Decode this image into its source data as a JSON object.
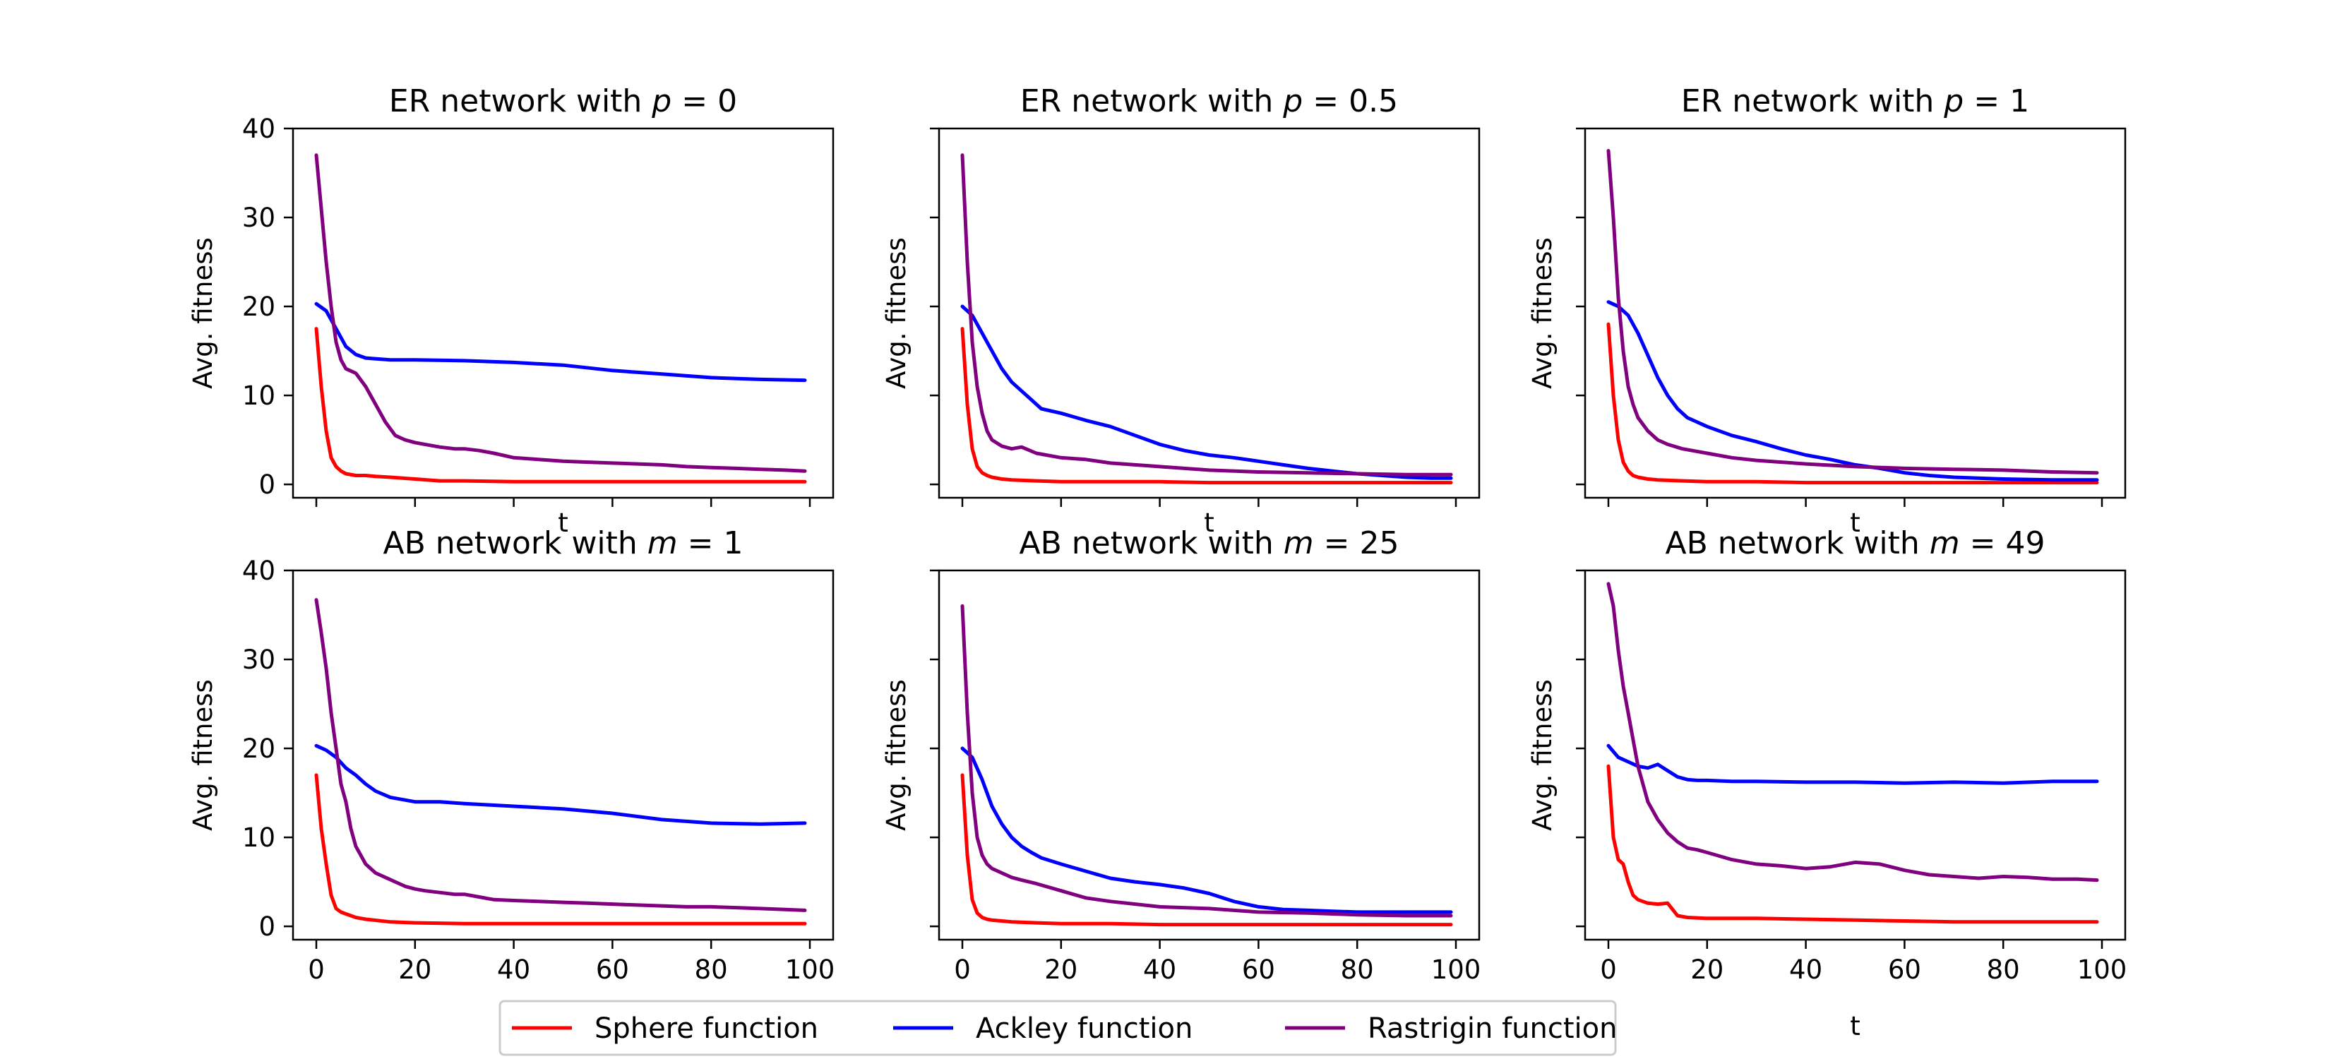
{
  "chart_data": {
    "type": "line",
    "layout": "2x3 grid",
    "legend": {
      "placement": "bottom-center",
      "entries": [
        {
          "label": "Sphere function",
          "color": "#ff0000"
        },
        {
          "label": "Ackley function",
          "color": "#0000ff"
        },
        {
          "label": "Rastrigin function",
          "color": "#800080"
        }
      ]
    },
    "xlim": [
      0,
      100
    ],
    "ylim": [
      -1.5,
      40
    ],
    "xticks": [
      0,
      20,
      40,
      60,
      80,
      100
    ],
    "yticks": [
      0,
      10,
      20,
      30,
      40
    ],
    "panels": [
      {
        "title": "ER network with p = 0",
        "title_prefix": "ER network with ",
        "title_var": "p",
        "title_value": " = 0",
        "xlabel": "t",
        "ylabel": "Avg. fitness",
        "series": [
          {
            "name": "Sphere function",
            "x": [
              0,
              1,
              2,
              3,
              4,
              5,
              6,
              8,
              10,
              12,
              15,
              20,
              25,
              30,
              40,
              50,
              60,
              70,
              80,
              90,
              99
            ],
            "y": [
              17.5,
              11,
              6,
              3,
              2,
              1.5,
              1.2,
              1,
              1,
              0.9,
              0.8,
              0.6,
              0.4,
              0.4,
              0.3,
              0.3,
              0.3,
              0.3,
              0.3,
              0.3,
              0.3
            ]
          },
          {
            "name": "Ackley function",
            "x": [
              0,
              2,
              4,
              6,
              8,
              10,
              15,
              20,
              30,
              40,
              50,
              60,
              70,
              80,
              90,
              99
            ],
            "y": [
              20.3,
              19.5,
              17.5,
              15.5,
              14.6,
              14.2,
              14,
              14,
              13.9,
              13.7,
              13.4,
              12.8,
              12.4,
              12,
              11.8,
              11.7
            ]
          },
          {
            "name": "Rastrigin function",
            "x": [
              0,
              1,
              2,
              3,
              4,
              5,
              6,
              8,
              10,
              12,
              14,
              16,
              18,
              20,
              22,
              25,
              28,
              30,
              33,
              36,
              40,
              45,
              50,
              55,
              60,
              65,
              70,
              75,
              80,
              85,
              90,
              95,
              99
            ],
            "y": [
              37,
              31,
              25,
              20,
              16,
              14,
              13,
              12.5,
              11,
              9,
              7,
              5.5,
              5,
              4.7,
              4.5,
              4.2,
              4,
              4,
              3.8,
              3.5,
              3,
              2.8,
              2.6,
              2.5,
              2.4,
              2.3,
              2.2,
              2,
              1.9,
              1.8,
              1.7,
              1.6,
              1.5
            ]
          }
        ]
      },
      {
        "title": "ER network with p = 0.5",
        "title_prefix": "ER network with ",
        "title_var": "p",
        "title_value": " = 0.5",
        "xlabel": "t",
        "ylabel": "Avg. fitness",
        "series": [
          {
            "name": "Sphere function",
            "x": [
              0,
              1,
              2,
              3,
              4,
              5,
              6,
              8,
              10,
              15,
              20,
              30,
              40,
              50,
              60,
              70,
              80,
              90,
              99
            ],
            "y": [
              17.5,
              9,
              4,
              2,
              1.3,
              1,
              0.8,
              0.6,
              0.5,
              0.4,
              0.3,
              0.3,
              0.3,
              0.2,
              0.2,
              0.2,
              0.2,
              0.2,
              0.2
            ]
          },
          {
            "name": "Ackley function",
            "x": [
              0,
              2,
              4,
              6,
              8,
              10,
              12,
              14,
              16,
              20,
              25,
              30,
              35,
              40,
              45,
              50,
              55,
              60,
              65,
              70,
              75,
              80,
              85,
              90,
              95,
              99
            ],
            "y": [
              20,
              19,
              17,
              15,
              13,
              11.5,
              10.5,
              9.5,
              8.5,
              8,
              7.2,
              6.5,
              5.5,
              4.5,
              3.8,
              3.3,
              3,
              2.6,
              2.2,
              1.8,
              1.5,
              1.2,
              1,
              0.8,
              0.7,
              0.7
            ]
          },
          {
            "name": "Rastrigin function",
            "x": [
              0,
              1,
              2,
              3,
              4,
              5,
              6,
              8,
              10,
              12,
              15,
              20,
              25,
              30,
              40,
              50,
              60,
              70,
              80,
              90,
              99
            ],
            "y": [
              37,
              25,
              16,
              11,
              8,
              6,
              5,
              4.3,
              4,
              4.2,
              3.5,
              3,
              2.8,
              2.4,
              2,
              1.6,
              1.4,
              1.3,
              1.2,
              1.1,
              1.1
            ]
          }
        ]
      },
      {
        "title": "ER network with p = 1",
        "title_prefix": "ER network with ",
        "title_var": "p",
        "title_value": " = 1",
        "xlabel": "t",
        "ylabel": "Avg. fitness",
        "series": [
          {
            "name": "Sphere function",
            "x": [
              0,
              1,
              2,
              3,
              4,
              5,
              6,
              8,
              10,
              15,
              20,
              30,
              40,
              50,
              60,
              70,
              80,
              90,
              99
            ],
            "y": [
              18,
              10,
              5,
              2.5,
              1.5,
              1,
              0.8,
              0.6,
              0.5,
              0.4,
              0.3,
              0.3,
              0.2,
              0.2,
              0.2,
              0.2,
              0.2,
              0.2,
              0.2
            ]
          },
          {
            "name": "Ackley function",
            "x": [
              0,
              2,
              4,
              6,
              8,
              10,
              12,
              14,
              16,
              18,
              20,
              25,
              30,
              35,
              40,
              45,
              50,
              55,
              60,
              65,
              70,
              80,
              90,
              99
            ],
            "y": [
              20.5,
              20,
              19,
              17,
              14.5,
              12,
              10,
              8.5,
              7.5,
              7,
              6.5,
              5.5,
              4.8,
              4,
              3.3,
              2.8,
              2.2,
              1.8,
              1.3,
              1,
              0.8,
              0.6,
              0.5,
              0.5
            ]
          },
          {
            "name": "Rastrigin function",
            "x": [
              0,
              1,
              2,
              3,
              4,
              5,
              6,
              8,
              10,
              12,
              15,
              20,
              25,
              30,
              40,
              50,
              60,
              70,
              80,
              90,
              99
            ],
            "y": [
              37.5,
              30,
              21,
              15,
              11,
              9,
              7.5,
              6,
              5,
              4.5,
              4,
              3.5,
              3,
              2.7,
              2.3,
              2,
              1.8,
              1.7,
              1.6,
              1.4,
              1.3
            ]
          }
        ]
      },
      {
        "title": "AB network with m = 1",
        "title_prefix": "AB network with ",
        "title_var": "m",
        "title_value": " = 1",
        "xlabel": "t",
        "ylabel": "Avg. fitness",
        "series": [
          {
            "name": "Sphere function",
            "x": [
              0,
              1,
              2,
              3,
              4,
              5,
              6,
              8,
              10,
              15,
              20,
              30,
              40,
              50,
              60,
              70,
              80,
              90,
              99
            ],
            "y": [
              17,
              11,
              7,
              3.5,
              2,
              1.6,
              1.4,
              1,
              0.8,
              0.5,
              0.4,
              0.3,
              0.3,
              0.3,
              0.3,
              0.3,
              0.3,
              0.3,
              0.3
            ]
          },
          {
            "name": "Ackley function",
            "x": [
              0,
              2,
              4,
              6,
              8,
              10,
              12,
              15,
              20,
              25,
              30,
              40,
              50,
              60,
              70,
              80,
              90,
              99
            ],
            "y": [
              20.3,
              19.8,
              19,
              17.8,
              17,
              16,
              15.2,
              14.5,
              14,
              14,
              13.8,
              13.5,
              13.2,
              12.7,
              12,
              11.6,
              11.5,
              11.6
            ]
          },
          {
            "name": "Rastrigin function",
            "x": [
              0,
              1,
              2,
              3,
              4,
              5,
              6,
              7,
              8,
              10,
              12,
              14,
              16,
              18,
              20,
              22,
              25,
              28,
              30,
              33,
              36,
              40,
              45,
              50,
              55,
              60,
              65,
              70,
              75,
              80,
              85,
              90,
              95,
              99
            ],
            "y": [
              36.7,
              33,
              29,
              24,
              20,
              16,
              14,
              11,
              9,
              7,
              6,
              5.5,
              5,
              4.5,
              4.2,
              4,
              3.8,
              3.6,
              3.6,
              3.3,
              3,
              2.9,
              2.8,
              2.7,
              2.6,
              2.5,
              2.4,
              2.3,
              2.2,
              2.2,
              2.1,
              2,
              1.9,
              1.8
            ]
          }
        ]
      },
      {
        "title": "AB network with m = 25",
        "title_prefix": "AB network with ",
        "title_var": "m",
        "title_value": " = 25",
        "xlabel": "t",
        "ylabel": "Avg. fitness",
        "series": [
          {
            "name": "Sphere function",
            "x": [
              0,
              1,
              2,
              3,
              4,
              5,
              6,
              8,
              10,
              15,
              20,
              30,
              40,
              50,
              60,
              70,
              80,
              90,
              99
            ],
            "y": [
              17,
              8,
              3,
              1.5,
              1,
              0.8,
              0.7,
              0.6,
              0.5,
              0.4,
              0.3,
              0.3,
              0.2,
              0.2,
              0.2,
              0.2,
              0.2,
              0.2,
              0.2
            ]
          },
          {
            "name": "Ackley function",
            "x": [
              0,
              2,
              4,
              6,
              8,
              10,
              12,
              14,
              16,
              20,
              25,
              30,
              35,
              40,
              45,
              50,
              55,
              60,
              65,
              70,
              75,
              80,
              90,
              99
            ],
            "y": [
              20,
              19,
              16.5,
              13.5,
              11.5,
              10,
              9,
              8.3,
              7.7,
              7,
              6.2,
              5.4,
              5,
              4.7,
              4.3,
              3.7,
              2.8,
              2.2,
              1.9,
              1.8,
              1.7,
              1.6,
              1.6,
              1.6
            ]
          },
          {
            "name": "Rastrigin function",
            "x": [
              0,
              1,
              2,
              3,
              4,
              5,
              6,
              8,
              10,
              12,
              15,
              20,
              25,
              30,
              40,
              50,
              60,
              70,
              80,
              90,
              99
            ],
            "y": [
              36,
              24,
              15,
              10,
              8,
              7,
              6.5,
              6,
              5.5,
              5.2,
              4.8,
              4,
              3.2,
              2.8,
              2.2,
              2,
              1.6,
              1.5,
              1.3,
              1.2,
              1.2
            ]
          }
        ]
      },
      {
        "title": "AB network with m = 49",
        "title_prefix": "AB network with ",
        "title_var": "m",
        "title_value": " = 49",
        "xlabel": "t",
        "ylabel": "Avg. fitness",
        "series": [
          {
            "name": "Sphere function",
            "x": [
              0,
              1,
              2,
              3,
              4,
              5,
              6,
              8,
              10,
              12,
              14,
              16,
              20,
              30,
              40,
              50,
              60,
              70,
              80,
              90,
              99
            ],
            "y": [
              18,
              10,
              7.5,
              7,
              5,
              3.5,
              3,
              2.6,
              2.5,
              2.6,
              1.2,
              1,
              0.9,
              0.9,
              0.8,
              0.7,
              0.6,
              0.5,
              0.5,
              0.5,
              0.5
            ]
          },
          {
            "name": "Ackley function",
            "x": [
              0,
              2,
              4,
              6,
              8,
              10,
              12,
              14,
              16,
              18,
              20,
              25,
              30,
              40,
              50,
              60,
              70,
              80,
              90,
              99
            ],
            "y": [
              20.3,
              19,
              18.5,
              18,
              17.8,
              18.2,
              17.5,
              16.8,
              16.5,
              16.4,
              16.4,
              16.3,
              16.3,
              16.2,
              16.2,
              16.1,
              16.2,
              16.1,
              16.3,
              16.3
            ]
          },
          {
            "name": "Rastrigin function",
            "x": [
              0,
              1,
              2,
              3,
              4,
              5,
              6,
              7,
              8,
              10,
              12,
              14,
              16,
              18,
              20,
              25,
              30,
              35,
              40,
              45,
              50,
              55,
              60,
              65,
              70,
              75,
              80,
              85,
              90,
              95,
              99
            ],
            "y": [
              38.5,
              36,
              31,
              27,
              24,
              21,
              18,
              16,
              14,
              12,
              10.5,
              9.5,
              8.8,
              8.6,
              8.3,
              7.5,
              7,
              6.8,
              6.5,
              6.7,
              7.2,
              7,
              6.3,
              5.8,
              5.6,
              5.4,
              5.6,
              5.5,
              5.3,
              5.3,
              5.2
            ]
          }
        ]
      }
    ]
  }
}
